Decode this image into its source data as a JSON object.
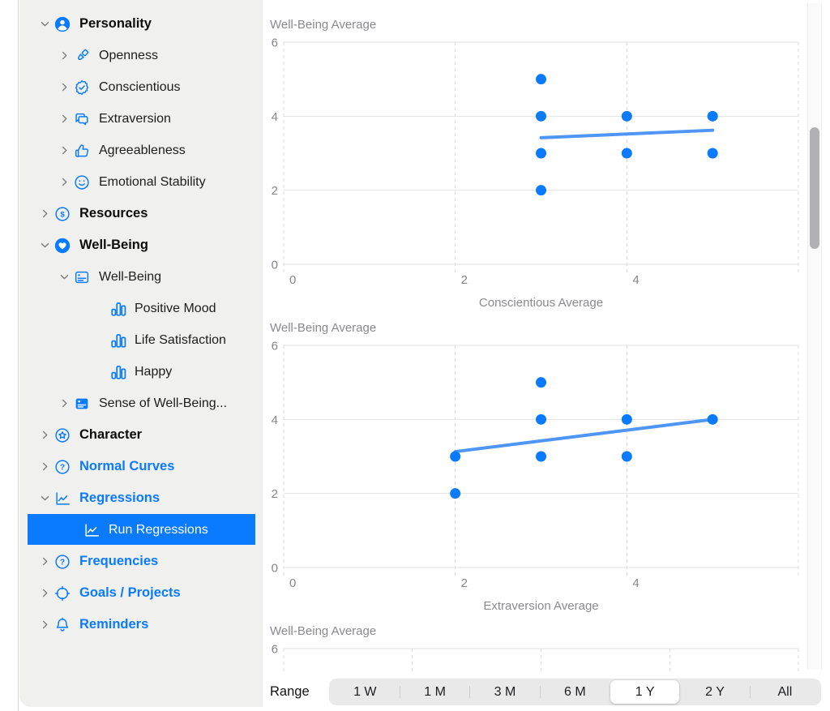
{
  "colors": {
    "accent": "#0a7aff",
    "selected_row_bg": "#0a7aff",
    "sidebar_bg": "#f0f0ef",
    "chart_dot": "#0a7aff",
    "regression_line": "#4e95f6",
    "grid_dashed": "#d8d8d8",
    "grid_solid": "#e2e2e2",
    "chart_text": "#8a8a8e"
  },
  "sidebar": {
    "items": [
      {
        "label": "Personality",
        "indent": 1,
        "chevron": "down",
        "icon": "person-circle",
        "style": "bold-dark",
        "selected": false
      },
      {
        "label": "Openness",
        "indent": 2,
        "chevron": "right",
        "icon": "paintbrush",
        "style": "regular",
        "selected": false
      },
      {
        "label": "Conscientious",
        "indent": 2,
        "chevron": "right",
        "icon": "seal-check",
        "style": "regular",
        "selected": false
      },
      {
        "label": "Extraversion",
        "indent": 2,
        "chevron": "right",
        "icon": "chat-bubbles",
        "style": "regular",
        "selected": false
      },
      {
        "label": "Agreeableness",
        "indent": 2,
        "chevron": "right",
        "icon": "thumbs-up",
        "style": "regular",
        "selected": false
      },
      {
        "label": "Emotional Stability",
        "indent": 2,
        "chevron": "right",
        "icon": "smiley",
        "style": "regular",
        "selected": false
      },
      {
        "label": "Resources",
        "indent": 1,
        "chevron": "right",
        "icon": "dollar-circle",
        "style": "bold-dark",
        "selected": false
      },
      {
        "label": "Well-Being",
        "indent": 1,
        "chevron": "down",
        "icon": "heart-circle",
        "style": "bold-dark",
        "selected": false
      },
      {
        "label": "Well-Being",
        "indent": 2,
        "chevron": "down",
        "icon": "card-lines",
        "style": "regular",
        "selected": false
      },
      {
        "label": "Positive Mood",
        "indent": 3,
        "chevron": null,
        "icon": "bar-chart",
        "style": "regular",
        "selected": false
      },
      {
        "label": "Life Satisfaction",
        "indent": 3,
        "chevron": null,
        "icon": "bar-chart",
        "style": "regular",
        "selected": false
      },
      {
        "label": "Happy",
        "indent": 3,
        "chevron": null,
        "icon": "bar-chart",
        "style": "regular",
        "selected": false
      },
      {
        "label": "Sense of Well-Being...",
        "indent": 2,
        "chevron": "right",
        "icon": "card-filled",
        "style": "regular",
        "selected": false
      },
      {
        "label": "Character",
        "indent": 1,
        "chevron": "right",
        "icon": "star-circle",
        "style": "bold-dark",
        "selected": false
      },
      {
        "label": "Normal Curves",
        "indent": 1,
        "chevron": "right",
        "icon": "question-circle",
        "style": "bold-blue",
        "selected": false
      },
      {
        "label": "Regressions",
        "indent": 1,
        "chevron": "down",
        "icon": "line-chart",
        "style": "bold-blue",
        "selected": false
      },
      {
        "label": "Run Regressions",
        "indent": 2,
        "chevron": null,
        "icon": "line-chart",
        "style": "regular",
        "selected": true
      },
      {
        "label": "Frequencies",
        "indent": 1,
        "chevron": "right",
        "icon": "question-circle",
        "style": "bold-blue",
        "selected": false
      },
      {
        "label": "Goals / Projects",
        "indent": 1,
        "chevron": "right",
        "icon": "target",
        "style": "bold-blue",
        "selected": false
      },
      {
        "label": "Reminders",
        "indent": 1,
        "chevron": "right",
        "icon": "bell",
        "style": "bold-blue",
        "selected": false
      }
    ]
  },
  "chart_data": [
    {
      "type": "scatter",
      "title": "",
      "ylabel": "Well-Being Average",
      "xlabel": "Conscientious Average",
      "xlim": [
        0,
        6
      ],
      "ylim": [
        0,
        6
      ],
      "xticks": [
        0,
        2,
        4
      ],
      "yticks": [
        0,
        2,
        4,
        6
      ],
      "xgrid": [
        0,
        2,
        4,
        6
      ],
      "grid": "vertical-dashed, horizontal-solid",
      "legend": "none",
      "points": [
        [
          3,
          5
        ],
        [
          3,
          4
        ],
        [
          3,
          3
        ],
        [
          3,
          2
        ],
        [
          4,
          4
        ],
        [
          4,
          3
        ],
        [
          5,
          4
        ],
        [
          5,
          3
        ]
      ],
      "regression": {
        "x": [
          3,
          5
        ],
        "y": [
          3.42,
          3.62
        ]
      },
      "partial": false
    },
    {
      "type": "scatter",
      "title": "",
      "ylabel": "Well-Being Average",
      "xlabel": "Extraversion Average",
      "xlim": [
        0,
        6
      ],
      "ylim": [
        0,
        6
      ],
      "xticks": [
        0,
        2,
        4
      ],
      "yticks": [
        0,
        2,
        4,
        6
      ],
      "xgrid": [
        0,
        2,
        4,
        6
      ],
      "grid": "vertical-dashed, horizontal-solid",
      "legend": "none",
      "points": [
        [
          2,
          3
        ],
        [
          2,
          2
        ],
        [
          3,
          5
        ],
        [
          3,
          4
        ],
        [
          3,
          3
        ],
        [
          4,
          4
        ],
        [
          4,
          3
        ],
        [
          5,
          4
        ]
      ],
      "regression": {
        "x": [
          2,
          5
        ],
        "y": [
          3.13,
          4.0
        ]
      },
      "partial": false
    },
    {
      "type": "scatter",
      "title": "",
      "ylabel": "Well-Being Average",
      "xlabel": "",
      "xlim": [
        0,
        8
      ],
      "ylim": [
        0,
        6
      ],
      "xticks": [],
      "yticks": [
        6
      ],
      "xgrid": [
        0,
        2,
        4,
        6,
        8
      ],
      "grid": "vertical-dashed, horizontal-solid",
      "legend": "none",
      "points": [],
      "regression": null,
      "partial": true
    }
  ],
  "range_bar": {
    "label": "Range",
    "options": [
      "1 W",
      "1 M",
      "3 M",
      "6 M",
      "1 Y",
      "2 Y",
      "All"
    ],
    "selected": "1 Y",
    "selected_index": 4
  }
}
